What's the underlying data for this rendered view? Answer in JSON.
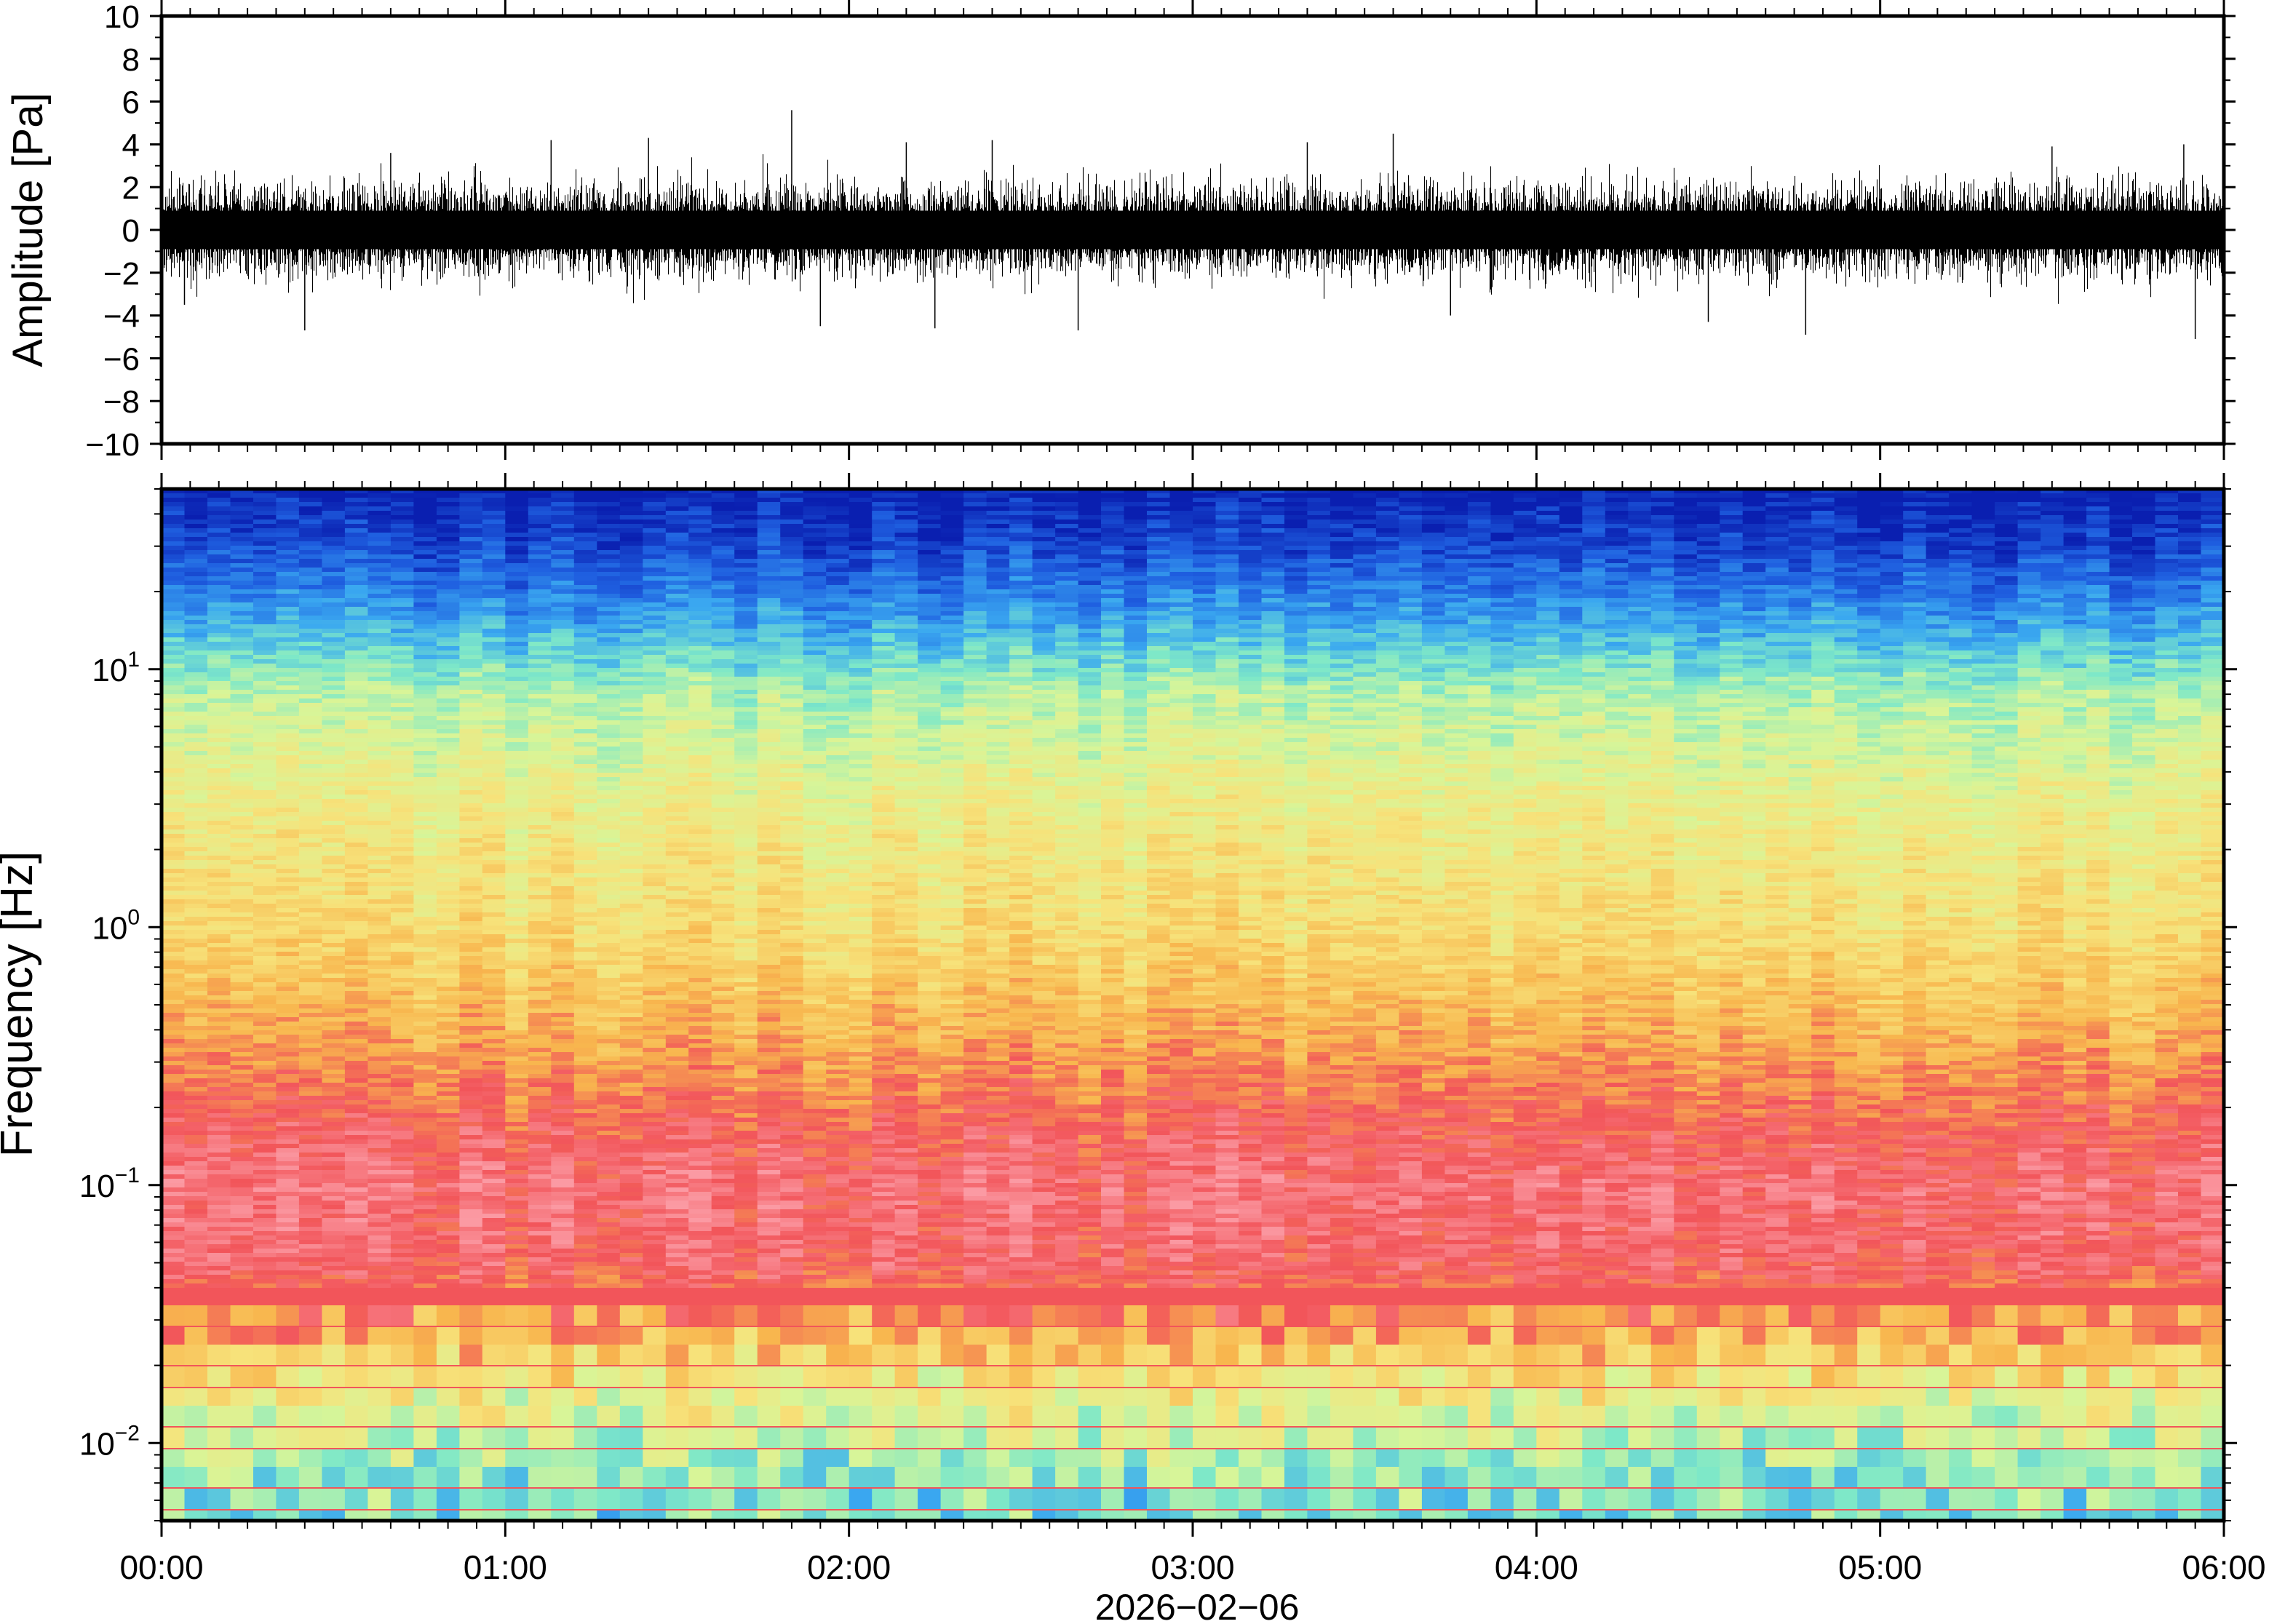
{
  "chart_data": [
    {
      "type": "line",
      "panel": "waveform",
      "ylabel": "Amplitude [Pa]",
      "ylim": [
        -10,
        10
      ],
      "yticks": [
        -10,
        -8,
        -6,
        -4,
        -2,
        0,
        2,
        4,
        6,
        8,
        10
      ],
      "ytick_labels": [
        "−10",
        "−8",
        "−6",
        "−4",
        "−2",
        "0",
        "2",
        "4",
        "6",
        "8",
        "10"
      ],
      "xlim": [
        "00:00",
        "06:00"
      ],
      "typical_envelope": [
        -2.5,
        2.5
      ],
      "series": [
        {
          "color": "#000000",
          "peaks": [
            {
              "t": "00:04",
              "value": -3.5
            },
            {
              "t": "00:25",
              "value": -4.7
            },
            {
              "t": "00:40",
              "value": 3.6
            },
            {
              "t": "01:08",
              "value": 4.2
            },
            {
              "t": "01:25",
              "value": 4.3
            },
            {
              "t": "01:50",
              "value": 5.6
            },
            {
              "t": "01:55",
              "value": -4.5
            },
            {
              "t": "02:10",
              "value": 4.1
            },
            {
              "t": "02:15",
              "value": -4.6
            },
            {
              "t": "02:25",
              "value": 4.2
            },
            {
              "t": "02:40",
              "value": -4.7
            },
            {
              "t": "03:20",
              "value": 4.1
            },
            {
              "t": "03:35",
              "value": 4.5
            },
            {
              "t": "03:45",
              "value": -4.0
            },
            {
              "t": "04:30",
              "value": -4.3
            },
            {
              "t": "04:47",
              "value": -4.9
            },
            {
              "t": "05:30",
              "value": 3.9
            },
            {
              "t": "05:53",
              "value": 4.0
            },
            {
              "t": "05:55",
              "value": -5.1
            }
          ]
        }
      ]
    },
    {
      "type": "heatmap",
      "panel": "spectrogram",
      "ylabel": "Frequency [Hz]",
      "yscale": "log",
      "ylim": [
        0.005,
        50
      ],
      "yticks": [
        0.01,
        0.1,
        1,
        10
      ],
      "ytick_labels": [
        {
          "base": "10",
          "exp": "−2"
        },
        {
          "base": "10",
          "exp": "−1"
        },
        {
          "base": "10",
          "exp": "0"
        },
        {
          "base": "10",
          "exp": "1"
        }
      ],
      "x_range": [
        "00:00",
        "06:00"
      ],
      "colormap": [
        "#0a1fb0",
        "#1f5fe0",
        "#3aa8f0",
        "#7ee8c8",
        "#d8f598",
        "#f7e27a",
        "#f8b64e",
        "#f2555a",
        "#fb9aa3"
      ],
      "colormap_order": "low power → high power",
      "frequency_profile": [
        {
          "freq": 50,
          "level": 0.0
        },
        {
          "freq": 30,
          "level": 0.08
        },
        {
          "freq": 15,
          "level": 0.25
        },
        {
          "freq": 8,
          "level": 0.45
        },
        {
          "freq": 3,
          "level": 0.57
        },
        {
          "freq": 1,
          "level": 0.64
        },
        {
          "freq": 0.4,
          "level": 0.75
        },
        {
          "freq": 0.2,
          "level": 0.85
        },
        {
          "freq": 0.1,
          "level": 0.93
        },
        {
          "freq": 0.05,
          "level": 0.9
        },
        {
          "freq": 0.03,
          "level": 0.78
        },
        {
          "freq": 0.02,
          "level": 0.62
        },
        {
          "freq": 0.012,
          "level": 0.5
        },
        {
          "freq": 0.008,
          "level": 0.4
        },
        {
          "freq": 0.005,
          "level": 0.36
        }
      ]
    }
  ],
  "x_axis": {
    "ticks": [
      "00:00",
      "01:00",
      "02:00",
      "03:00",
      "04:00",
      "05:00",
      "06:00"
    ],
    "date_label": "2026−02−06"
  }
}
